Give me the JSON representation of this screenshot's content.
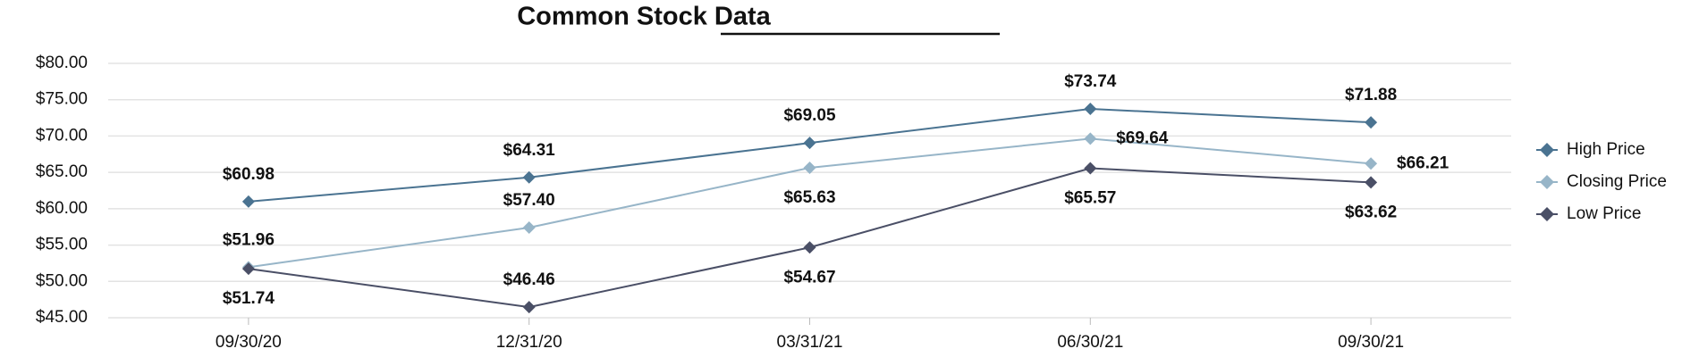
{
  "chart_data": {
    "type": "line",
    "title": "Common Stock Data",
    "categories": [
      "09/30/20",
      "12/31/20",
      "03/31/21",
      "06/30/21",
      "09/30/21"
    ],
    "series": [
      {
        "name": "High Price",
        "color": "#4a7391",
        "values": [
          60.98,
          64.31,
          69.05,
          73.74,
          71.88
        ],
        "value_labels": [
          "$60.98",
          "$64.31",
          "$69.05",
          "$73.74",
          "$71.88"
        ]
      },
      {
        "name": "Closing Price",
        "color": "#97b5c8",
        "values": [
          51.96,
          57.4,
          65.63,
          69.64,
          66.21
        ],
        "value_labels": [
          "$51.96",
          "$57.40",
          "$65.63",
          "$69.64",
          "$66.21"
        ]
      },
      {
        "name": "Low Price",
        "color": "#4a4f66",
        "values": [
          51.74,
          46.46,
          54.67,
          65.57,
          63.62
        ],
        "value_labels": [
          "$51.74",
          "$46.46",
          "$54.67",
          "$65.57",
          "$63.62"
        ]
      }
    ],
    "ylim": [
      45,
      80
    ],
    "yticks": [
      {
        "value": 45,
        "label": "$45.00"
      },
      {
        "value": 50,
        "label": "$50.00"
      },
      {
        "value": 55,
        "label": "$55.00"
      },
      {
        "value": 60,
        "label": "$60.00"
      },
      {
        "value": 65,
        "label": "$65.00"
      },
      {
        "value": 70,
        "label": "$70.00"
      },
      {
        "value": 75,
        "label": "$75.00"
      },
      {
        "value": 80,
        "label": "$80.00"
      }
    ],
    "grid": true,
    "legend": "right"
  }
}
